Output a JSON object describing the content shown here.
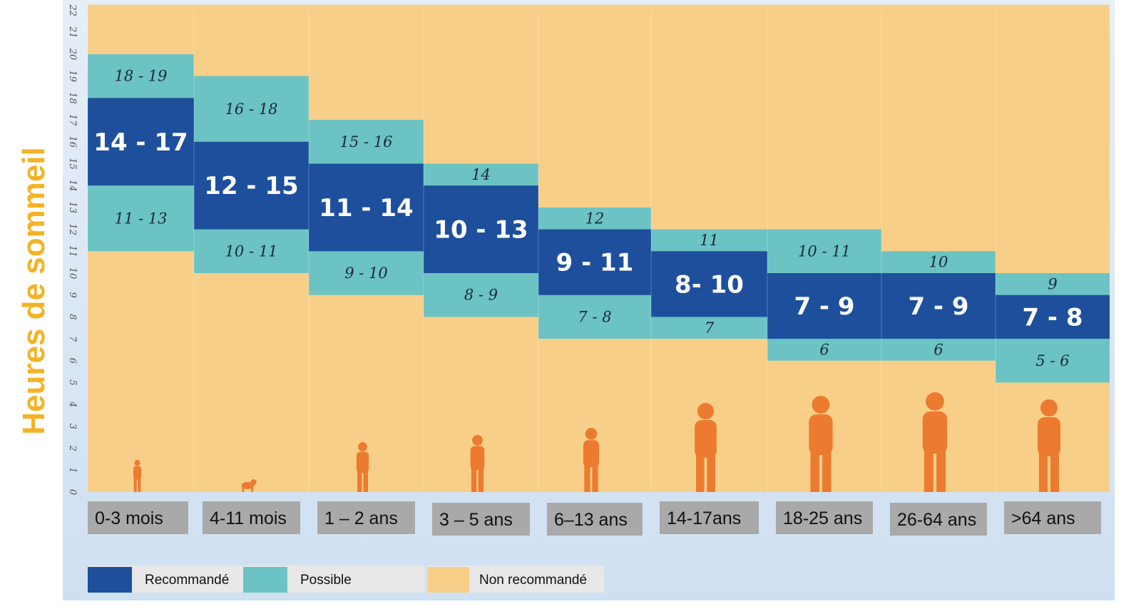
{
  "colors": {
    "recommended": "#1d4f9c",
    "possible": "#6cc3c4",
    "not_recommended": "#f8cf88",
    "silhouette": "#ec7b30",
    "label_box": "#a9a9a9",
    "ylabel": "#f4b324"
  },
  "chart_data": {
    "type": "bar",
    "title": "",
    "ylabel": "Heures de sommeil",
    "xlabel": "",
    "ylim": [
      0,
      22
    ],
    "yticks": [
      "0",
      "1",
      "2",
      "3",
      "4",
      "5",
      "6",
      "7",
      "8",
      "9",
      "10",
      "11",
      "12",
      "13",
      "14",
      "15",
      "16",
      "17",
      "18",
      "19",
      "20",
      "21",
      "22"
    ],
    "categories": [
      "0-3 mois",
      "4-11 mois",
      "1 – 2 ans",
      "3 – 5 ans",
      "6–13 ans",
      "14-17ans",
      "18-25 ans",
      "26-64 ans",
      ">64  ans"
    ],
    "series": [
      {
        "name": "Recommandé",
        "ranges": [
          [
            14,
            18
          ],
          [
            12,
            16
          ],
          [
            11,
            15
          ],
          [
            10,
            14
          ],
          [
            9,
            12
          ],
          [
            8,
            11
          ],
          [
            7,
            10
          ],
          [
            7,
            10
          ],
          [
            7,
            9
          ]
        ],
        "labels": [
          "14 - 17",
          "12 - 15",
          "11 - 14",
          "10 - 13",
          "9 - 11",
          "8- 10",
          "7 - 9",
          "7 - 9",
          "7 - 8"
        ]
      },
      {
        "name": "Possible",
        "ranges": [
          [
            11,
            20
          ],
          [
            10,
            19
          ],
          [
            9,
            17
          ],
          [
            8,
            15
          ],
          [
            7,
            13
          ],
          [
            7,
            12
          ],
          [
            6,
            12
          ],
          [
            6,
            11
          ],
          [
            5,
            10
          ]
        ],
        "upper_labels": [
          "18 - 19",
          "16 - 18",
          "15 - 16",
          "14",
          "12",
          "11",
          "10 - 11",
          "10",
          "9"
        ],
        "lower_labels": [
          "11 - 13",
          "10 - 11",
          "9 - 10",
          "8 - 9",
          "7 - 8",
          "7",
          "6",
          "6",
          "5 - 6"
        ]
      }
    ],
    "legend": {
      "position": "bottom-left",
      "entries": [
        "Recommandé",
        "Possible",
        "Non recommandé"
      ]
    },
    "silhouettes": [
      "baby-icon",
      "crawling-baby-icon",
      "toddler-icon",
      "child-icon",
      "kid-icon",
      "teen-icon",
      "young-adult-icon",
      "adult-icon",
      "senior-icon"
    ]
  }
}
